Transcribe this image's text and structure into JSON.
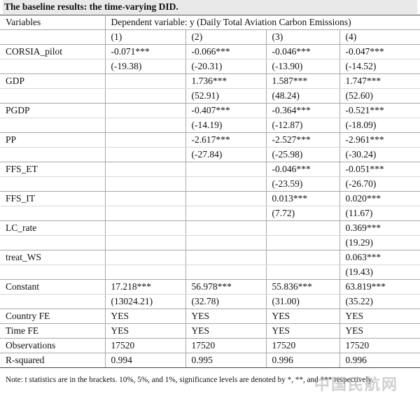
{
  "caption": "The baseline results: the time-varying DID.",
  "header": {
    "variables_label": "Variables",
    "dependent_label": "Dependent variable: y (Daily Total Aviation Carbon Emissions)",
    "columns": [
      "(1)",
      "(2)",
      "(3)",
      "(4)"
    ]
  },
  "rows": [
    {
      "name": "CORSIA_pilot",
      "coef": [
        "-0.071***",
        "-0.066***",
        "-0.046***",
        "-0.047***"
      ],
      "t": [
        "(-19.38)",
        "(-20.31)",
        "(-13.90)",
        "(-14.52)"
      ]
    },
    {
      "name": "GDP",
      "coef": [
        "",
        "1.736***",
        "1.587***",
        "1.747***"
      ],
      "t": [
        "",
        "(52.91)",
        "(48.24)",
        "(52.60)"
      ]
    },
    {
      "name": "PGDP",
      "coef": [
        "",
        "-0.407***",
        "-0.364***",
        "-0.521***"
      ],
      "t": [
        "",
        "(-14.19)",
        "(-12.87)",
        "(-18.09)"
      ]
    },
    {
      "name": "PP",
      "coef": [
        "",
        "-2.617***",
        "-2.527***",
        "-2.961***"
      ],
      "t": [
        "",
        "(-27.84)",
        "(-25.98)",
        "(-30.24)"
      ]
    },
    {
      "name": "FFS_ET",
      "coef": [
        "",
        "",
        "-0.046***",
        "-0.051***"
      ],
      "t": [
        "",
        "",
        "(-23.59)",
        "(-26.70)"
      ]
    },
    {
      "name": "FFS_IT",
      "coef": [
        "",
        "",
        "0.013***",
        "0.020***"
      ],
      "t": [
        "",
        "",
        "(7.72)",
        "(11.67)"
      ]
    },
    {
      "name": "LC_rate",
      "coef": [
        "",
        "",
        "",
        "0.369***"
      ],
      "t": [
        "",
        "",
        "",
        "(19.29)"
      ]
    },
    {
      "name": "treat_WS",
      "coef": [
        "",
        "",
        "",
        "0.063***"
      ],
      "t": [
        "",
        "",
        "",
        "(19.43)"
      ]
    },
    {
      "name": "Constant",
      "coef": [
        "17.218***",
        "56.978***",
        "55.836***",
        "63.819***"
      ],
      "t": [
        "(13024.21)",
        "(32.78)",
        "(31.00)",
        "(35.22)"
      ]
    }
  ],
  "footer_rows": [
    {
      "name": "Country FE",
      "values": [
        "YES",
        "YES",
        "YES",
        "YES"
      ]
    },
    {
      "name": "Time FE",
      "values": [
        "YES",
        "YES",
        "YES",
        "YES"
      ]
    },
    {
      "name": "Observations",
      "values": [
        "17520",
        "17520",
        "17520",
        "17520"
      ]
    },
    {
      "name": "R-squared",
      "values": [
        "0.994",
        "0.995",
        "0.996",
        "0.996"
      ]
    }
  ],
  "note": "Note: t statistics are in the brackets. 10%, 5%, and 1%, significance levels are denoted by *, **, and *** respectively.",
  "watermark": "中国民航网"
}
